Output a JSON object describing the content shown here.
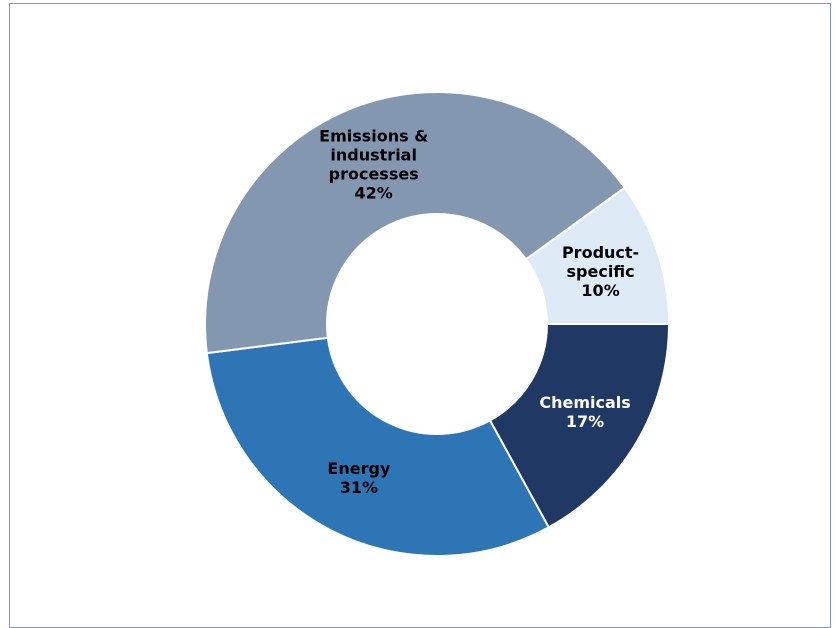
{
  "chart_data": {
    "type": "pie",
    "variant": "donut",
    "start_angle_deg": 0,
    "direction": "clockwise",
    "slices": [
      {
        "label_lines": [
          "Chemicals"
        ],
        "value": 17,
        "value_label": "17%",
        "color": "#1f3864",
        "text_color": "#ffffff"
      },
      {
        "label_lines": [
          "Energy"
        ],
        "value": 31,
        "value_label": "31%",
        "color": "#2e75b6",
        "text_color": "#000000"
      },
      {
        "label_lines": [
          "Emissions &",
          "industrial",
          "processes"
        ],
        "value": 42,
        "value_label": "42%",
        "color": "#8497b0",
        "text_color": "#000000"
      },
      {
        "label_lines": [
          "Product-",
          "specific"
        ],
        "value": 10,
        "value_label": "10%",
        "color": "#deebf7",
        "text_color": "#000000"
      }
    ]
  },
  "colors": {
    "frame_border": "#7a9cc4",
    "background": "#ffffff"
  }
}
